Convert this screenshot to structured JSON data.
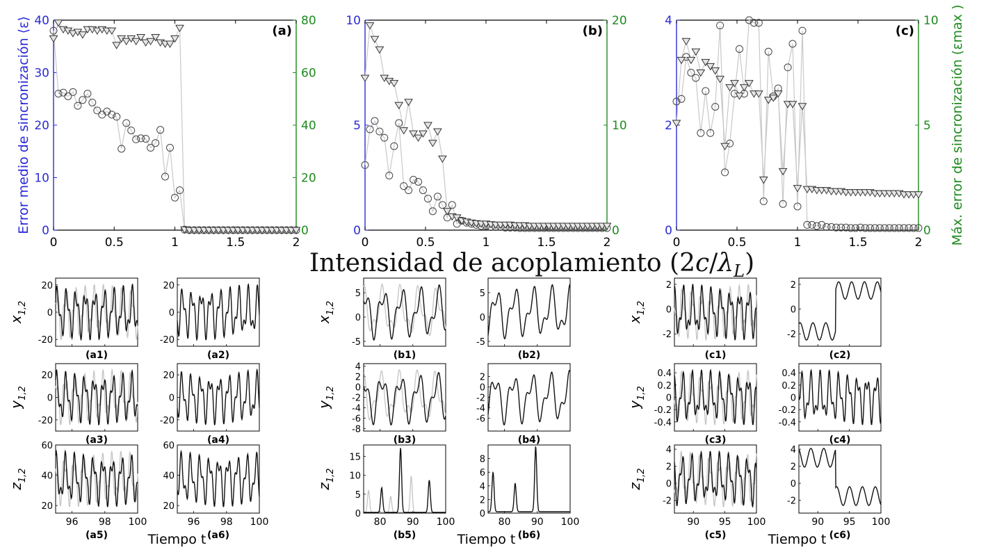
{
  "title": "Intensidad de acoplamiento (2c/λL)",
  "title_parts": {
    "main": "Intensidad de acoplamiento (2",
    "c": "c",
    "slash": "/",
    "lambda": "λ",
    "sub": "L",
    "close": ")"
  },
  "left_axis_label": "Error medio de sincronización ⟨ε⟩",
  "right_axis_label": "Máx. error de sincronización (εmax )",
  "colors": {
    "left_axis": "#2a2ad4",
    "right_axis": "#1d8a1d",
    "line": "#c8c8c8",
    "trace_dark": "#111111",
    "trace_light": "#c4c4c4"
  },
  "time_label": "Tiempo t",
  "chart_data": [
    {
      "type": "scatter",
      "panel": "(a)",
      "x": [
        0,
        0.04,
        0.08,
        0.12,
        0.16,
        0.2,
        0.24,
        0.28,
        0.32,
        0.36,
        0.4,
        0.44,
        0.48,
        0.52,
        0.56,
        0.6,
        0.64,
        0.68,
        0.72,
        0.76,
        0.8,
        0.84,
        0.88,
        0.92,
        0.96,
        1.0,
        1.04,
        1.08,
        1.12,
        1.16,
        1.2,
        1.24,
        1.28,
        1.32,
        1.36,
        1.4,
        1.44,
        1.48,
        1.52,
        1.56,
        1.6,
        1.64,
        1.68,
        1.72,
        1.76,
        1.8,
        1.84,
        1.88,
        1.92,
        1.96,
        2.0
      ],
      "series": [
        {
          "name": "⟨ε⟩",
          "axis": "left",
          "marker": "circle",
          "values": [
            38,
            26,
            26.2,
            25.5,
            26.3,
            23.7,
            24.8,
            26,
            24.3,
            22.8,
            22,
            22.6,
            22,
            21.6,
            15.5,
            20.4,
            19,
            17.3,
            17.5,
            17.4,
            15.7,
            16.6,
            19.1,
            10.2,
            15.7,
            6.2,
            7.6,
            0.1,
            0,
            0,
            0,
            0,
            0,
            0,
            0,
            0,
            0,
            0,
            0,
            0,
            0,
            0,
            0,
            0,
            0,
            0,
            0,
            0,
            0,
            0,
            0
          ]
        },
        {
          "name": "εmax",
          "axis": "right",
          "marker": "triangle",
          "values": [
            73,
            79,
            76.5,
            76,
            75,
            75.5,
            74.5,
            76.5,
            76.5,
            76,
            76.5,
            76,
            76,
            70.5,
            73,
            72,
            73,
            72,
            73.5,
            71.5,
            72,
            73.5,
            71.5,
            71,
            71,
            73,
            77,
            0.2,
            0,
            0,
            0,
            0,
            0,
            0,
            0,
            0,
            0,
            0,
            0,
            0,
            0,
            0,
            0,
            0,
            0,
            0,
            0,
            0,
            0,
            0,
            0
          ]
        }
      ],
      "xlim": [
        0,
        2
      ],
      "ylim_left": [
        0,
        40
      ],
      "ylim_right": [
        0,
        80
      ],
      "xticks": [
        "0",
        "0.5",
        "1",
        "1.5",
        "2"
      ],
      "yticks_left": [
        "0",
        "10",
        "20",
        "30",
        "40"
      ],
      "yticks_right": [
        "0",
        "20",
        "40",
        "60",
        "80"
      ]
    },
    {
      "type": "scatter",
      "panel": "(b)",
      "x": [
        0,
        0.04,
        0.08,
        0.12,
        0.16,
        0.2,
        0.24,
        0.28,
        0.32,
        0.36,
        0.4,
        0.44,
        0.48,
        0.52,
        0.56,
        0.6,
        0.64,
        0.68,
        0.72,
        0.76,
        0.8,
        0.84,
        0.88,
        0.92,
        0.96,
        1.0,
        1.04,
        1.08,
        1.12,
        1.16,
        1.2,
        1.24,
        1.28,
        1.32,
        1.36,
        1.4,
        1.44,
        1.48,
        1.52,
        1.56,
        1.6,
        1.64,
        1.68,
        1.72,
        1.76,
        1.8,
        1.84,
        1.88,
        1.92,
        1.96,
        2.0
      ],
      "series": [
        {
          "name": "⟨ε⟩",
          "axis": "left",
          "marker": "circle",
          "values": [
            3.1,
            4.8,
            5.2,
            4.7,
            4.4,
            2.6,
            4,
            5.1,
            2.1,
            1.9,
            2.4,
            2.3,
            1.9,
            1.5,
            0.9,
            1.6,
            1.2,
            0.6,
            1.2,
            0.3,
            0.45,
            0.35,
            0.3,
            0.25,
            0.2,
            0.2,
            0.15,
            0.15,
            0.15,
            0.12,
            0.12,
            0.12,
            0.1,
            0.1,
            0.1,
            0.1,
            0.1,
            0.1,
            0.1,
            0.1,
            0.1,
            0.1,
            0.1,
            0.1,
            0.1,
            0.1,
            0.1,
            0.1,
            0.1,
            0.1,
            0.1
          ]
        },
        {
          "name": "εmax",
          "axis": "right",
          "marker": "triangle",
          "values": [
            14.5,
            19.5,
            18.2,
            17.2,
            14.5,
            14.2,
            14,
            11.9,
            9.5,
            12.2,
            9.2,
            8.8,
            9.2,
            10,
            8.3,
            9.4,
            6.8,
            1.8,
            1.3,
            1.2,
            0.9,
            0.8,
            0.7,
            0.65,
            0.6,
            0.6,
            0.55,
            0.5,
            0.5,
            0.5,
            0.5,
            0.45,
            0.45,
            0.45,
            0.4,
            0.4,
            0.4,
            0.4,
            0.4,
            0.4,
            0.4,
            0.4,
            0.4,
            0.4,
            0.4,
            0.4,
            0.4,
            0.4,
            0.4,
            0.4,
            0.4
          ]
        }
      ],
      "xlim": [
        0,
        2
      ],
      "ylim_left": [
        0,
        10
      ],
      "ylim_right": [
        0,
        20
      ],
      "xticks": [
        "0",
        "0.5",
        "1",
        "1.5",
        "2"
      ],
      "yticks_left": [
        "0",
        "5",
        "10"
      ],
      "yticks_right": [
        "0",
        "10",
        "20"
      ]
    },
    {
      "type": "scatter",
      "panel": "(c)",
      "x": [
        0,
        0.04,
        0.08,
        0.12,
        0.16,
        0.2,
        0.24,
        0.28,
        0.32,
        0.36,
        0.4,
        0.44,
        0.48,
        0.52,
        0.56,
        0.6,
        0.64,
        0.68,
        0.72,
        0.76,
        0.8,
        0.84,
        0.88,
        0.92,
        0.96,
        1.0,
        1.04,
        1.08,
        1.12,
        1.16,
        1.2,
        1.24,
        1.28,
        1.32,
        1.36,
        1.4,
        1.44,
        1.48,
        1.52,
        1.56,
        1.6,
        1.64,
        1.68,
        1.72,
        1.76,
        1.8,
        1.84,
        1.88,
        1.92,
        1.96,
        2.0
      ],
      "series": [
        {
          "name": "⟨ε⟩",
          "axis": "left",
          "marker": "circle",
          "values": [
            2.45,
            2.5,
            3.3,
            3,
            2.9,
            1.85,
            2.65,
            1.85,
            2.35,
            3.9,
            1.1,
            1.65,
            2.6,
            3.45,
            2.6,
            4,
            3.95,
            3.95,
            0.55,
            3.4,
            2.55,
            2.7,
            0.5,
            3.1,
            3.55,
            0.45,
            3.8,
            0.1,
            0.1,
            0.08,
            0.1,
            0.06,
            0.06,
            0.05,
            0.05,
            0.05,
            0.04,
            0.04,
            0.05,
            0.04,
            0.04,
            0.04,
            0.04,
            0.04,
            0.04,
            0.04,
            0.04,
            0.04,
            0.04,
            0.04,
            0.04
          ]
        },
        {
          "name": "εmax",
          "axis": "right",
          "marker": "triangle",
          "values": [
            5.1,
            8.1,
            9,
            8.1,
            8.5,
            7.5,
            8,
            7.8,
            7.6,
            7.2,
            4,
            6.8,
            7,
            6.4,
            6.8,
            7,
            6.5,
            6.5,
            2.4,
            6.2,
            6.3,
            6.5,
            2.8,
            6.0,
            6.0,
            2.0,
            5.9,
            1.95,
            1.95,
            1.9,
            1.9,
            1.9,
            1.85,
            1.85,
            1.85,
            1.8,
            1.8,
            1.8,
            1.8,
            1.8,
            1.8,
            1.75,
            1.75,
            1.75,
            1.75,
            1.75,
            1.75,
            1.7,
            1.7,
            1.7,
            1.7
          ]
        }
      ],
      "xlim": [
        0,
        2
      ],
      "ylim_left": [
        0,
        4
      ],
      "ylim_right": [
        0,
        10
      ],
      "xticks": [
        "0",
        "0.5",
        "1",
        "1.5",
        "2"
      ],
      "yticks_left": [
        "0",
        "2",
        "4"
      ],
      "yticks_right": [
        "0",
        "5",
        "10"
      ]
    }
  ],
  "time_series": {
    "type": "line",
    "groups": [
      {
        "id": "a",
        "tlim": [
          95,
          100
        ],
        "xticks": [
          "96",
          "98",
          "100"
        ],
        "rows": [
          {
            "ylabel": "x",
            "sub": "1,2",
            "ylim": [
              -25,
              25
            ],
            "yticks": [
              "-20",
              "0",
              "20"
            ],
            "panels": [
              {
                "label": "(a1)"
              },
              {
                "label": "(a2)"
              }
            ]
          },
          {
            "ylabel": "y",
            "sub": "1,2",
            "ylim": [
              -30,
              30
            ],
            "yticks": [
              "-20",
              "0",
              "20"
            ],
            "panels": [
              {
                "label": "(a3)"
              },
              {
                "label": "(a4)"
              }
            ]
          },
          {
            "ylabel": "z",
            "sub": "1,2",
            "ylim": [
              15,
              60
            ],
            "yticks": [
              "20",
              "40",
              "60"
            ],
            "panels": [
              {
                "label": "(a5)"
              },
              {
                "label": "(a6)"
              }
            ]
          }
        ]
      },
      {
        "id": "b",
        "tlim": [
          75,
          100
        ],
        "xticks": [
          "80",
          "90",
          "100"
        ],
        "rows": [
          {
            "ylabel": "x",
            "sub": "1,2",
            "ylim": [
              -6,
              8
            ],
            "yticks": [
              "-5",
              "0",
              "5"
            ],
            "panels": [
              {
                "label": "(b1)"
              },
              {
                "label": "(b2)"
              }
            ]
          },
          {
            "ylabel": "y",
            "sub": "1,2",
            "ylim": [
              -8.5,
              4.5
            ],
            "yticks": [
              "-8",
              "-6",
              "-4",
              "-2",
              "0",
              "2",
              "4"
            ],
            "yticks_right": [
              "-6",
              "-4",
              "-2",
              "0",
              "2"
            ],
            "panels": [
              {
                "label": "(b3)"
              },
              {
                "label": "(b4)"
              }
            ]
          },
          {
            "ylabel": "z",
            "sub": "1,2",
            "ylim": [
              0,
              18
            ],
            "yticks": [
              "0",
              "5",
              "10",
              "15"
            ],
            "ylim_right": [
              0,
              10
            ],
            "yticks_right": [
              "0",
              "2",
              "4",
              "6",
              "8"
            ],
            "panels": [
              {
                "label": "(b5)"
              },
              {
                "label": "(b6)"
              }
            ]
          }
        ]
      },
      {
        "id": "c",
        "tlim": [
          87,
          100
        ],
        "xticks": [
          "90",
          "95",
          "100"
        ],
        "rows": [
          {
            "ylabel": "x",
            "sub": "1,2",
            "ylim": [
              -3,
              2.5
            ],
            "yticks": [
              "-2",
              "0",
              "2"
            ],
            "panels": [
              {
                "label": "(c1)"
              },
              {
                "label": "(c2)"
              }
            ]
          },
          {
            "ylabel": "y",
            "sub": "1,2",
            "ylim": [
              -0.55,
              0.55
            ],
            "yticks": [
              "-0.4",
              "-0.2",
              "0",
              "0.2",
              "0.4"
            ],
            "panels": [
              {
                "label": "(c3)"
              },
              {
                "label": "(c4)"
              }
            ]
          },
          {
            "ylabel": "z",
            "sub": "1,2",
            "ylim": [
              -3.5,
              4.5
            ],
            "yticks": [
              "-2",
              "0",
              "2",
              "4"
            ],
            "panels": [
              {
                "label": "(c5)"
              },
              {
                "label": "(c6)"
              }
            ]
          }
        ]
      }
    ]
  }
}
